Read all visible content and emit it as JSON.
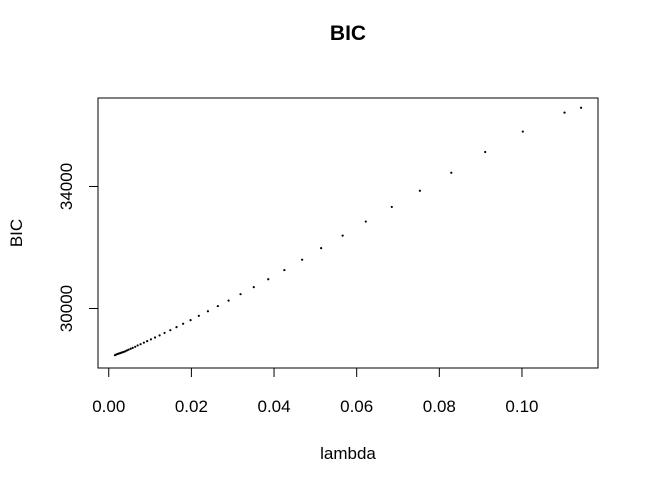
{
  "chart_data": {
    "type": "scatter",
    "title": "BIC",
    "xlabel": "lambda",
    "ylabel": "BIC",
    "xlim": [
      -0.0026,
      0.1184
    ],
    "ylim": [
      28050,
      36900
    ],
    "xticks": [
      0.0,
      0.02,
      0.04,
      0.06,
      0.08,
      0.1
    ],
    "xtick_labels": [
      "0.00",
      "0.02",
      "0.04",
      "0.06",
      "0.08",
      "0.10"
    ],
    "yticks": [
      30000,
      34000
    ],
    "ytick_labels": [
      "30000",
      "34000"
    ],
    "grid": false,
    "legend": false,
    "point_marker": "small dot",
    "points": [
      [
        0.0015,
        28470
      ],
      [
        0.0018,
        28490
      ],
      [
        0.0021,
        28510
      ],
      [
        0.0024,
        28520
      ],
      [
        0.0027,
        28535
      ],
      [
        0.003,
        28550
      ],
      [
        0.0033,
        28565
      ],
      [
        0.0036,
        28575
      ],
      [
        0.004,
        28600
      ],
      [
        0.0044,
        28625
      ],
      [
        0.0048,
        28650
      ],
      [
        0.0053,
        28680
      ],
      [
        0.0058,
        28710
      ],
      [
        0.0064,
        28745
      ],
      [
        0.007,
        28790
      ],
      [
        0.0077,
        28830
      ],
      [
        0.0085,
        28880
      ],
      [
        0.0093,
        28930
      ],
      [
        0.0102,
        28990
      ],
      [
        0.0112,
        29050
      ],
      [
        0.0123,
        29120
      ],
      [
        0.0135,
        29200
      ],
      [
        0.0149,
        29290
      ],
      [
        0.0164,
        29390
      ],
      [
        0.018,
        29500
      ],
      [
        0.0198,
        29620
      ],
      [
        0.0218,
        29760
      ],
      [
        0.024,
        29910
      ],
      [
        0.0264,
        30080
      ],
      [
        0.029,
        30260
      ],
      [
        0.0319,
        30470
      ],
      [
        0.0351,
        30700
      ],
      [
        0.0386,
        30960
      ],
      [
        0.0425,
        31260
      ],
      [
        0.0468,
        31600
      ],
      [
        0.0514,
        31980
      ],
      [
        0.0566,
        32390
      ],
      [
        0.0622,
        32850
      ],
      [
        0.0685,
        33330
      ],
      [
        0.0753,
        33860
      ],
      [
        0.0829,
        34450
      ],
      [
        0.0911,
        35130
      ],
      [
        0.1002,
        35800
      ],
      [
        0.1103,
        36420
      ],
      [
        0.1143,
        36580
      ]
    ]
  }
}
